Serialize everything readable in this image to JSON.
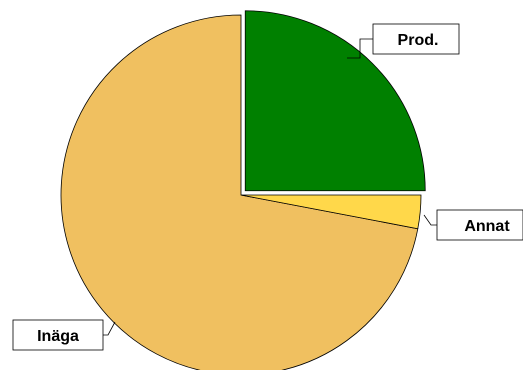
{
  "chart_data": {
    "type": "pie",
    "title": "",
    "start_angle_deg": 0,
    "direction": "counterclockwise",
    "legend": "none",
    "slices": [
      {
        "label": "Prod.",
        "value": 25,
        "color": "#008000",
        "exploded": true
      },
      {
        "label": "Inäga",
        "value": 72,
        "color": "#F0C060",
        "exploded": false
      },
      {
        "label": "Annat",
        "value": 3,
        "color": "#FFD84A",
        "exploded": false
      }
    ]
  }
}
